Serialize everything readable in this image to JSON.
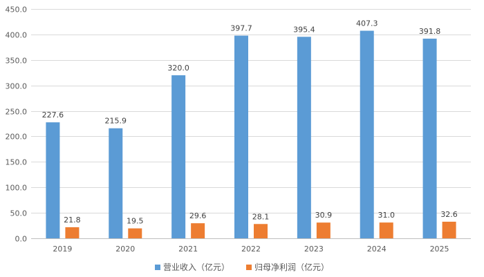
{
  "chart_data": {
    "type": "bar",
    "title": "",
    "xlabel": "",
    "ylabel": "",
    "categories": [
      "2019",
      "2020",
      "2021",
      "2022",
      "2023",
      "2024",
      "2025"
    ],
    "series": [
      {
        "name": "营业收入（亿元）",
        "color": "#5b9bd5",
        "values": [
          227.6,
          215.9,
          320.0,
          397.7,
          395.4,
          407.3,
          391.8
        ]
      },
      {
        "name": "归母净利润（亿元）",
        "color": "#ed7d31",
        "values": [
          21.8,
          19.5,
          29.6,
          28.1,
          30.9,
          31.0,
          32.6
        ]
      }
    ],
    "ylim": [
      0,
      450
    ],
    "ytick_step": 50,
    "ytick_labels": [
      "0.0",
      "50.0",
      "100.0",
      "150.0",
      "200.0",
      "250.0",
      "300.0",
      "350.0",
      "400.0",
      "450.0"
    ],
    "data_labels": [
      [
        "227.6",
        "215.9",
        "320.0",
        "397.7",
        "395.4",
        "407.3",
        "391.8"
      ],
      [
        "21.8",
        "19.5",
        "29.6",
        "28.1",
        "30.9",
        "31.0",
        "32.6"
      ]
    ],
    "grid": true,
    "legend_position": "bottom-center"
  }
}
